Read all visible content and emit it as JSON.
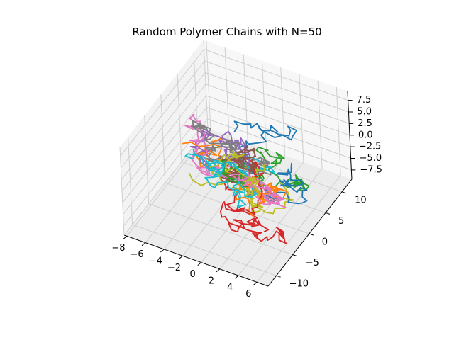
{
  "chart_data": {
    "type": "line3d",
    "title": "Random Polymer Chains with N=50",
    "chain_count": 20,
    "steps_per_chain": 50,
    "xlim": [
      -8.3,
      7.2
    ],
    "ylim": [
      -12.5,
      13.0
    ],
    "zlim": [
      -9.5,
      9.5
    ],
    "x_ticks": [
      -8,
      -6,
      -4,
      -2,
      0,
      2,
      4,
      6
    ],
    "y_ticks": [
      -10,
      -5,
      0,
      5,
      10
    ],
    "z_ticks": [
      -7.5,
      -5.0,
      -2.5,
      0.0,
      2.5,
      5.0,
      7.5
    ],
    "x_tick_labels": [
      "−8",
      "−6",
      "−4",
      "−2",
      "0",
      "2",
      "4",
      "6"
    ],
    "y_tick_labels": [
      "−10",
      "−5",
      "0",
      "5",
      "10"
    ],
    "z_tick_labels": [
      "−7.5",
      "−5.0",
      "−2.5",
      "0.0",
      "2.5",
      "5.0",
      "7.5"
    ],
    "colors": [
      "#1f77b4",
      "#ff7f0e",
      "#2ca02c",
      "#d62728",
      "#9467bd",
      "#8c564b",
      "#e377c2",
      "#7f7f7f",
      "#bcbd22",
      "#17becf"
    ],
    "grid": true,
    "legend": "none"
  }
}
